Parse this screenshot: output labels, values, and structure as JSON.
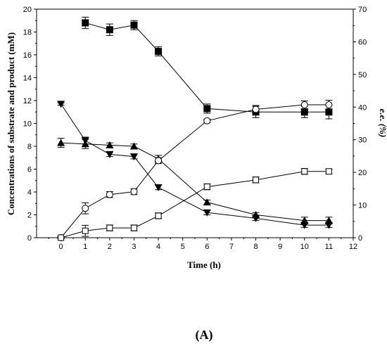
{
  "chart_data": {
    "type": "line",
    "xlabel": "Time (h)",
    "ylabel": "Concentrations of substrate and product (mM)",
    "ylabel_right": "e.e. (%)",
    "xlim": [
      -1,
      12
    ],
    "ylim": [
      0,
      20
    ],
    "ylim_right": [
      0,
      70
    ],
    "xticks": [
      "0",
      "1",
      "2",
      "3",
      "4",
      "5",
      "6",
      "7",
      "8",
      "9",
      "10",
      "11",
      "12"
    ],
    "yticks": [
      "0",
      "2",
      "4",
      "6",
      "8",
      "10",
      "12",
      "14",
      "16",
      "18",
      "20"
    ],
    "yticks_right": [
      "0",
      "10",
      "20",
      "30",
      "40",
      "50",
      "60",
      "70"
    ],
    "grid": false,
    "legend": "none",
    "panel_label": "(A)",
    "series": [
      {
        "marker": "filled-square",
        "axis": "left",
        "x": [
          1,
          2,
          3,
          4,
          6,
          8,
          10,
          11
        ],
        "y": [
          18.8,
          18.2,
          18.6,
          16.3,
          11.3,
          11.0,
          11.0,
          11.0
        ],
        "err": [
          0.5,
          0.5,
          0.4,
          0.4,
          0.4,
          0.5,
          0.5,
          0.6
        ]
      },
      {
        "marker": "filled-triangle-down",
        "axis": "left",
        "x": [
          0,
          1,
          2,
          3,
          4,
          6,
          8,
          10,
          11
        ],
        "y": [
          11.7,
          8.5,
          7.3,
          7.1,
          4.4,
          2.2,
          1.7,
          1.1,
          1.1
        ],
        "err": [
          0.1,
          0.3,
          0.2,
          0.2,
          0.2,
          0.2,
          0.2,
          0.2,
          0.2
        ]
      },
      {
        "marker": "filled-triangle-up",
        "axis": "left",
        "x": [
          0,
          1,
          2,
          3,
          4,
          6,
          8,
          10,
          11
        ],
        "y": [
          8.3,
          8.2,
          8.1,
          8.0,
          6.9,
          3.1,
          2.0,
          1.5,
          1.5
        ],
        "err": [
          0.4,
          0.4,
          0.2,
          0.2,
          0.3,
          0.2,
          0.2,
          0.3,
          0.3
        ]
      },
      {
        "marker": "open-circle",
        "axis": "right",
        "x": [
          0,
          1,
          2,
          3,
          4,
          6,
          8,
          10,
          11
        ],
        "y": [
          0,
          9,
          13.2,
          14.1,
          23.6,
          35.8,
          39.3,
          40.7,
          40.7
        ],
        "err": [
          0.3,
          1.7,
          0.9,
          0.9,
          0.9,
          0.5,
          1.2,
          1.2,
          1.4
        ]
      },
      {
        "marker": "open-square",
        "axis": "right",
        "x": [
          0,
          1,
          2,
          3,
          4,
          6,
          8,
          10,
          11
        ],
        "y": [
          0,
          2.1,
          3.0,
          3.0,
          6.7,
          15.6,
          17.7,
          20.3,
          20.3
        ],
        "err": [
          0.3,
          1.7,
          0.9,
          0.9,
          0.9,
          0.9,
          0.9,
          0.9,
          0.7
        ]
      }
    ]
  }
}
